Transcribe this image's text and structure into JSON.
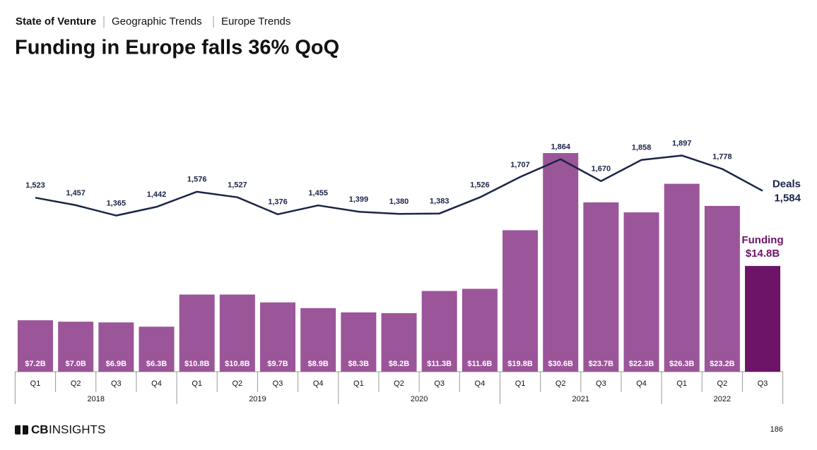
{
  "header": {
    "breadcrumb": [
      "State of Venture",
      "Geographic Trends",
      "Europe Trends"
    ]
  },
  "chart_data": {
    "type": "bar_line",
    "title": "Funding in Europe falls 36% QoQ",
    "category_groups": [
      {
        "name": "2018",
        "categories": [
          "Q1",
          "Q2",
          "Q3",
          "Q4"
        ]
      },
      {
        "name": "2019",
        "categories": [
          "Q1",
          "Q2",
          "Q3",
          "Q4"
        ]
      },
      {
        "name": "2020",
        "categories": [
          "Q1",
          "Q2",
          "Q3",
          "Q4"
        ]
      },
      {
        "name": "2021",
        "categories": [
          "Q1",
          "Q2",
          "Q3",
          "Q4"
        ]
      },
      {
        "name": "2022",
        "categories": [
          "Q1",
          "Q2",
          "Q3"
        ]
      }
    ],
    "series": [
      {
        "name": "Funding",
        "type": "bar",
        "color": "#9b5599",
        "highlight_color": "#6d1368",
        "values": [
          7.2,
          7.0,
          6.9,
          6.3,
          10.8,
          10.8,
          9.7,
          8.9,
          8.3,
          8.2,
          11.3,
          11.6,
          19.8,
          30.6,
          23.7,
          22.3,
          26.3,
          23.2,
          14.8
        ],
        "value_labels": [
          "$7.2B",
          "$7.0B",
          "$6.9B",
          "$6.3B",
          "$10.8B",
          "$10.8B",
          "$9.7B",
          "$8.9B",
          "$8.3B",
          "$8.2B",
          "$11.3B",
          "$11.6B",
          "$19.8B",
          "$30.6B",
          "$23.7B",
          "$22.3B",
          "$26.3B",
          "$23.2B",
          "$14.8B"
        ]
      },
      {
        "name": "Deals",
        "type": "line",
        "color": "#1a2447",
        "values": [
          1523,
          1457,
          1365,
          1442,
          1576,
          1527,
          1376,
          1455,
          1399,
          1380,
          1383,
          1526,
          1707,
          1864,
          1670,
          1858,
          1897,
          1778,
          1584
        ],
        "value_labels": [
          "1,523",
          "1,457",
          "1,365",
          "1,442",
          "1,576",
          "1,527",
          "1,376",
          "1,455",
          "1,399",
          "1,380",
          "1,383",
          "1,526",
          "1,707",
          "1,864",
          "1,670",
          "1,858",
          "1,897",
          "1,778",
          "1,584"
        ]
      }
    ]
  },
  "footer": {
    "logo": {
      "bold": "CB",
      "regular": "INSIGHTS"
    },
    "page": 186
  }
}
